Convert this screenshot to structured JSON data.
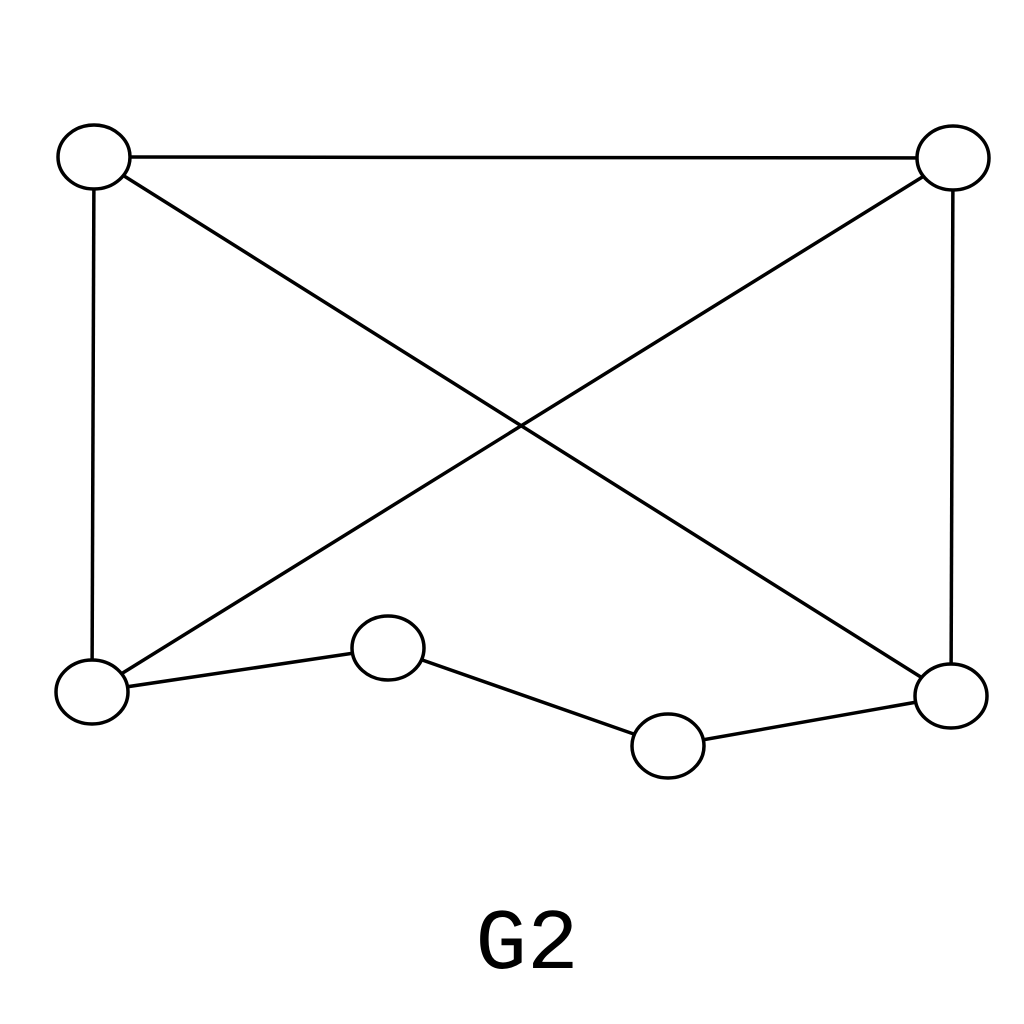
{
  "graph": {
    "label": "G2",
    "stroke_color": "#000000",
    "node_fill": "#ffffff",
    "nodes": [
      {
        "id": "top-left"
      },
      {
        "id": "top-right"
      },
      {
        "id": "bottom-left"
      },
      {
        "id": "middle-left"
      },
      {
        "id": "middle-right"
      },
      {
        "id": "bottom-right"
      }
    ],
    "edges": [
      [
        "top-left",
        "top-right"
      ],
      [
        "top-left",
        "bottom-left"
      ],
      [
        "top-left",
        "bottom-right"
      ],
      [
        "top-right",
        "bottom-left"
      ],
      [
        "top-right",
        "bottom-right"
      ],
      [
        "bottom-left",
        "middle-left"
      ],
      [
        "middle-left",
        "middle-right"
      ],
      [
        "middle-right",
        "bottom-right"
      ]
    ]
  }
}
